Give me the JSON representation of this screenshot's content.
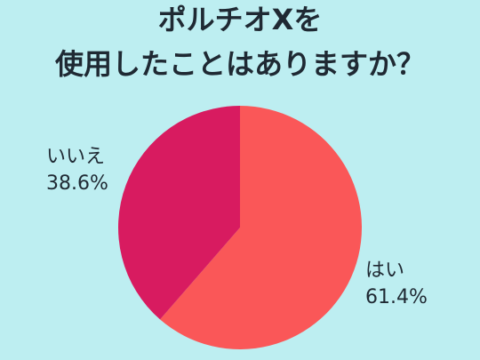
{
  "title": {
    "line1": "ポルチオXを",
    "line2": "使用したことはありますか？"
  },
  "colors": {
    "background": "#bdeef1",
    "hai": "#fa5758",
    "iie": "#d81b60"
  },
  "chart_data": {
    "type": "pie",
    "title": "ポルチオXを使用したことはありますか？",
    "slices": [
      {
        "label": "はい",
        "value": 61.4,
        "value_label": "61.4%",
        "color": "#fa5758"
      },
      {
        "label": "いいえ",
        "value": 38.6,
        "value_label": "38.6%",
        "color": "#d81b60"
      }
    ]
  }
}
